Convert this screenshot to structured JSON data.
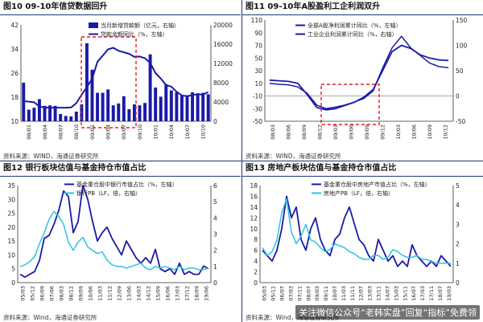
{
  "watermark": "关注微信公众号“老韩实盘”回复“指标”免费领",
  "panels": [
    {
      "key": "p10",
      "title": "图10 09-10年信贷数据回升",
      "source": "资料来源：WIND，海通证券研究所",
      "chart_data": {
        "type": "bar+line",
        "title": "图10 09-10年信贷数据回升",
        "legend": [
          "当月新增贷款额（亿元，右轴）",
          "贷款余额同比（%，左轴）"
        ],
        "x_ticks": [
          "08/01",
          "08/04",
          "08/07",
          "08/10",
          "09/01",
          "09/04",
          "09/07",
          "09/10",
          "10/01",
          "10/04",
          "10/07",
          "10/10"
        ],
        "left_axis": {
          "min": 10,
          "max": 42,
          "ticks": [
            10,
            18,
            26,
            34,
            42
          ]
        },
        "right_axis": {
          "min": 0,
          "max": 20000,
          "ticks": [
            0,
            4000,
            8000,
            12000,
            16000,
            20000
          ]
        },
        "bar_values": [
          8000,
          2400,
          2800,
          4600,
          3200,
          3300,
          3200,
          1500,
          1100,
          1000,
          2000,
          3500,
          16200,
          10700,
          5900,
          5900,
          6600,
          3300,
          3700,
          5200,
          2500,
          3500,
          3300,
          3800,
          13900,
          7000,
          5100,
          7700,
          6400,
          6000,
          5300,
          5400,
          6000,
          5800,
          5900,
          5600
        ],
        "line_values": [
          16.7,
          16.5,
          16.3,
          14.9,
          14.6,
          14.5,
          14.5,
          14.5,
          14.5,
          14.6,
          16.0,
          18.8,
          21.3,
          24.2,
          29.8,
          31.8,
          33.9,
          34.4,
          33.4,
          32.9,
          32.4,
          31.4,
          31.5,
          30.9,
          29.4,
          26.0,
          24.2,
          22.0,
          21.5,
          19.8,
          18.6,
          18.3,
          18.7,
          19.0,
          18.8,
          19.7
        ],
        "annotation": {
          "type": "dashed-box",
          "color": "#e02020",
          "x_range": [
            "08/12",
            "09/10"
          ]
        }
      }
    },
    {
      "key": "p11",
      "title": "图11 09-10年A股盈利工企利润双升",
      "source": "资料来源：WIND，海通证券研究所",
      "chart_data": {
        "type": "line",
        "title": "图11 09-10年A股盈利工企利润双升",
        "legend": [
          "全部A股净利润累计同比（%，左轴）",
          "工业企业利润累计同比（%，右轴）"
        ],
        "x_ticks": [
          "08/03",
          "08/06",
          "08/09",
          "08/12",
          "09/03",
          "09/06",
          "09/09",
          "09/12",
          "10/03",
          "10/06",
          "10/09",
          "10/12"
        ],
        "left_axis": {
          "min": -50,
          "max": 110,
          "ticks": [
            -50,
            -30,
            -10,
            10,
            30,
            50,
            70,
            90,
            110
          ]
        },
        "right_axis": {
          "min": -50,
          "max": 150,
          "ticks": [
            -50,
            0,
            50,
            100,
            150
          ]
        },
        "series": [
          {
            "name": "全部A股净利润累计同比（%，左轴）",
            "values": [
              15,
              14,
              13,
              10,
              -8,
              -28,
              -32,
              -30,
              -25,
              -20,
              -12,
              0,
              30,
              60,
              70,
              65,
              55,
              50,
              47,
              46
            ]
          },
          {
            "name": "工业企业利润累计同比（%，右轴）",
            "values": [
              25,
              23,
              22,
              18,
              5,
              -18,
              -25,
              -22,
              -18,
              -12,
              -5,
              10,
              55,
              95,
              118,
              95,
              80,
              65,
              58,
              56
            ]
          }
        ],
        "annotation": {
          "type": "dashed-box",
          "color": "#e02020",
          "x_range": [
            "08/12",
            "09/12"
          ]
        }
      }
    },
    {
      "key": "p12",
      "title": "图12 银行板块估值与基金持仓市值占比",
      "source": "资料来源：Wind，海通证券研究所",
      "chart_data": {
        "type": "line",
        "title": "图12 银行板块估值与基金持仓市值占比",
        "legend": [
          "基金重仓股中银行市值占比（%，左轴）",
          "银行PB（LF，倍，右轴）"
        ],
        "x_ticks": [
          "05/03",
          "05/12",
          "06/09",
          "07/06",
          "08/03",
          "08/12",
          "09/09",
          "10/06",
          "11/03",
          "11/12",
          "12/09",
          "13/06",
          "14/03",
          "14/12",
          "15/09",
          "16/06",
          "17/03",
          "17/12",
          "18/09",
          "19/06"
        ],
        "left_axis": {
          "min": 0,
          "max": 35,
          "ticks": [
            0,
            5,
            10,
            15,
            20,
            25,
            30,
            35
          ]
        },
        "right_axis": {
          "min": 0,
          "max": 6,
          "ticks": [
            0,
            1,
            2,
            3,
            4,
            5,
            6
          ]
        },
        "series": [
          {
            "name": "基金重仓股中银行市值占比（%，左轴）",
            "values": [
              3,
              2,
              3,
              4,
              8,
              16,
              17,
              21,
              26,
              33,
              31,
              18,
              22,
              35,
              30,
              22,
              15,
              18,
              20,
              16,
              13,
              10,
              15,
              12,
              9,
              7,
              9,
              7,
              12,
              5,
              4,
              5,
              3,
              7,
              3,
              4,
              3,
              3,
              6,
              5
            ]
          },
          {
            "name": "银行PB（LF，倍，右轴）",
            "values": [
              1.0,
              1.1,
              1.3,
              1.6,
              2.4,
              3.1,
              3.9,
              4.4,
              4.1,
              3.6,
              2.5,
              2.0,
              2.5,
              2.8,
              2.2,
              2.0,
              1.8,
              1.9,
              1.4,
              1.1,
              1.0,
              1.0,
              0.9,
              1.0,
              1.1,
              1.2,
              0.9,
              0.8,
              1.0,
              0.9,
              1.0,
              0.9,
              0.8,
              1.0,
              0.8,
              0.9,
              0.9,
              0.8,
              0.8,
              0.9
            ]
          }
        ]
      }
    },
    {
      "key": "p13",
      "title": "图13 房地产板块估值与基金持仓市值占比",
      "source": "资料来源：Wind，海通证券研究所",
      "chart_data": {
        "type": "line",
        "title": "图13 房地产板块估值与基金持仓市值占比",
        "legend": [
          "基金重仓股中房地产市值占比（%，左轴）",
          "房地产PB（LF，倍，右轴）"
        ],
        "x_ticks": [
          "05/03",
          "05/11",
          "06/07",
          "07/03",
          "07/11",
          "08/07",
          "09/03",
          "09/11",
          "10/07",
          "11/03",
          "11/11",
          "12/07",
          "13/03",
          "13/11",
          "14/07",
          "15/03",
          "15/11",
          "16/07",
          "17/03",
          "17/11",
          "18/07",
          "19/03"
        ],
        "left_axis": {
          "min": 0,
          "max": 18,
          "ticks": [
            0,
            2,
            4,
            6,
            8,
            10,
            12,
            14,
            16,
            18
          ]
        },
        "right_axis": {
          "min": 0,
          "max": 5,
          "ticks": [
            0,
            1,
            2,
            3,
            4,
            5
          ]
        },
        "series": [
          {
            "name": "基金重仓股中房地产市值占比（%，左轴）",
            "values": [
              6,
              5,
              4,
              6,
              10,
              16,
              12,
              14,
              8,
              6,
              10,
              12,
              8,
              6,
              5,
              8,
              9,
              12,
              14,
              11,
              8,
              7,
              5,
              4,
              8,
              6,
              4,
              5,
              3,
              4,
              3,
              7,
              5,
              4,
              3,
              4,
              3,
              5,
              4,
              3
            ]
          },
          {
            "name": "房地产PB（LF，倍，右轴）",
            "values": [
              1.8,
              1.4,
              1.6,
              2.2,
              3.6,
              4.3,
              2.6,
              2.0,
              2.4,
              3.0,
              2.2,
              2.1,
              1.8,
              1.6,
              1.7,
              2.0,
              1.9,
              1.8,
              1.6,
              1.5,
              1.3,
              1.2,
              1.2,
              1.4,
              1.4,
              1.2,
              1.3,
              1.7,
              1.6,
              1.4,
              1.3,
              1.3,
              1.4,
              1.2,
              1.2,
              1.1,
              1.0,
              1.0,
              1.0,
              1.0
            ]
          }
        ]
      }
    }
  ]
}
